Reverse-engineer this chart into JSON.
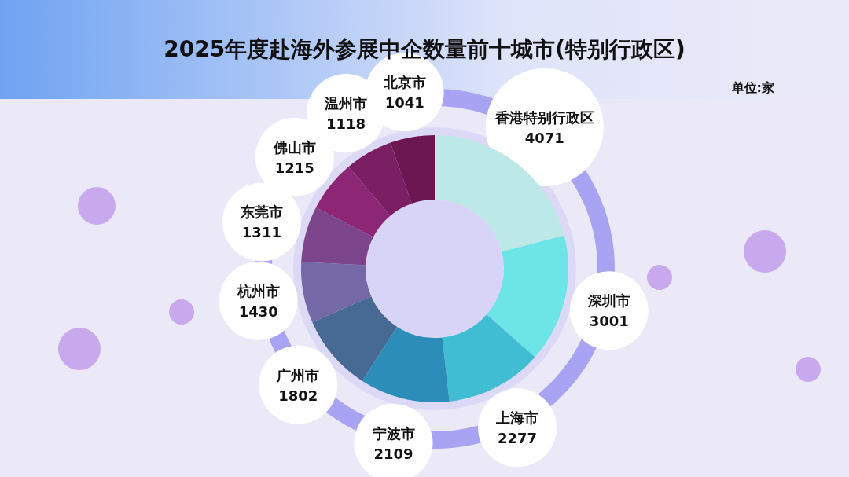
{
  "chart_data": {
    "type": "donut",
    "title": "2025年度赴海外参展中企数量前十城市(特别行政区)",
    "annotations": [
      "单位:家"
    ],
    "categories": [
      "香港特别行政区",
      "深圳市",
      "上海市",
      "宁波市",
      "广州市",
      "杭州市",
      "东莞市",
      "佛山市",
      "温州市",
      "北京市"
    ],
    "values": [
      4071,
      3001,
      2277,
      2109,
      1802,
      1430,
      1311,
      1215,
      1118,
      1041
    ],
    "colors": [
      "#bce9e8",
      "#6de5e6",
      "#40bdd2",
      "#2c8eb8",
      "#466a93",
      "#7468a7",
      "#7c448b",
      "#8e2676",
      "#7b1f64",
      "#6c1752"
    ],
    "data_labels": true,
    "legend": false
  }
}
